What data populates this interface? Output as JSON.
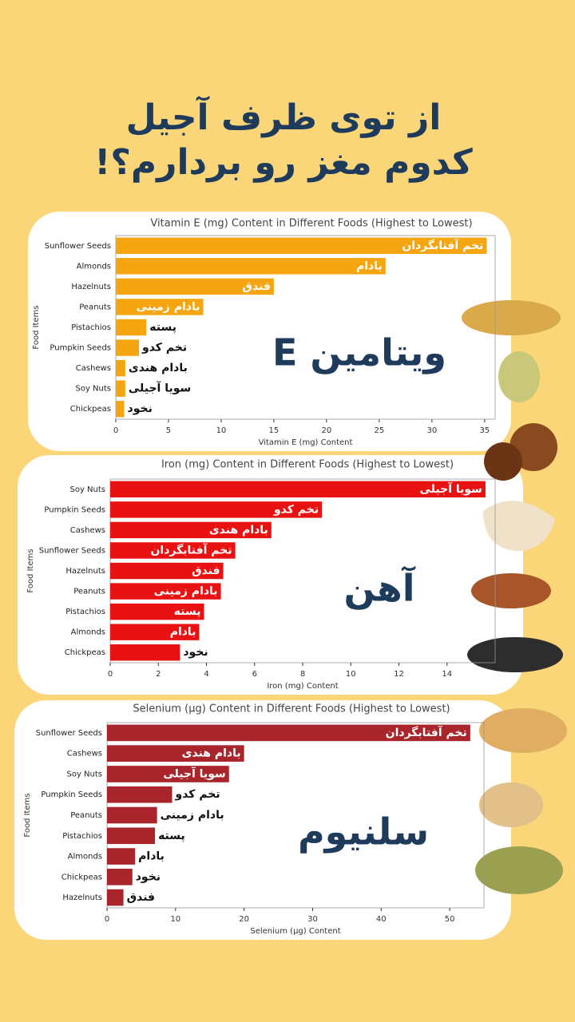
{
  "header": {
    "title_lines": [
      "از توی ظرف آجیل",
      "کدوم مغز رو بردارم؟!"
    ]
  },
  "chart_data": [
    {
      "type": "bar",
      "orientation": "horizontal",
      "title": "Vitamin E (mg) Content in Different Foods (Highest to Lowest)",
      "xlabel": "Vitamin E (mg) Content",
      "ylabel": "Food Items",
      "categories": [
        "Sunflower Seeds",
        "Almonds",
        "Hazelnuts",
        "Peanuts",
        "Pistachios",
        "Pumpkin Seeds",
        "Cashews",
        "Soy Nuts",
        "Chickpeas"
      ],
      "values": [
        35.2,
        25.6,
        15.0,
        8.3,
        2.9,
        2.2,
        0.9,
        0.9,
        0.8
      ],
      "bar_labels": [
        "تخم آفتابگردان",
        "بادام",
        "فندق",
        "بادام زمینی",
        "پسته",
        "تخم کدو",
        "بادام هندی",
        "سویا آجیلی",
        "نخود"
      ],
      "overlay_label": "ویتامین E",
      "color": "#f5a50f",
      "xlim": [
        0,
        36
      ],
      "xticks": [
        0,
        5,
        10,
        15,
        20,
        25,
        30,
        35
      ]
    },
    {
      "type": "bar",
      "orientation": "horizontal",
      "title": "Iron (mg) Content in Different Foods (Highest to Lowest)",
      "xlabel": "Iron (mg) Content",
      "ylabel": "Food Items",
      "categories": [
        "Soy Nuts",
        "Pumpkin Seeds",
        "Cashews",
        "Sunflower Seeds",
        "Hazelnuts",
        "Peanuts",
        "Pistachios",
        "Almonds",
        "Chickpeas"
      ],
      "values": [
        15.6,
        8.8,
        6.7,
        5.2,
        4.7,
        4.6,
        3.9,
        3.7,
        2.9
      ],
      "bar_labels": [
        "سویا آجیلی",
        "تخم کدو",
        "بادام هندی",
        "تخم آفتابگردان",
        "فندق",
        "بادام زمینی",
        "پسته",
        "بادام",
        "نخود"
      ],
      "overlay_label": "آهن",
      "color": "#e81212",
      "xlim": [
        0,
        16
      ],
      "xticks": [
        0,
        2,
        4,
        6,
        8,
        10,
        12,
        14
      ]
    },
    {
      "type": "bar",
      "orientation": "horizontal",
      "title": "Selenium (µg) Content in Different Foods (Highest to Lowest)",
      "xlabel": "Selenium (µg) Content",
      "ylabel": "Food Items",
      "categories": [
        "Sunflower Seeds",
        "Cashews",
        "Soy Nuts",
        "Pumpkin Seeds",
        "Peanuts",
        "Pistachios",
        "Almonds",
        "Chickpeas",
        "Hazelnuts"
      ],
      "values": [
        53,
        20.0,
        17.8,
        9.5,
        7.3,
        7.0,
        4.1,
        3.7,
        2.4
      ],
      "bar_labels": [
        "تخم آفتابگردان",
        "بادام هندی",
        "سویا آجیلی",
        "تخم کدو",
        "بادام زمینی",
        "پسته",
        "بادام",
        "نخود",
        "فندق"
      ],
      "overlay_label": "سلنیوم",
      "color": "#a8262b",
      "xlim": [
        0,
        55
      ],
      "xticks": [
        0,
        10,
        20,
        30,
        40,
        50
      ]
    }
  ]
}
